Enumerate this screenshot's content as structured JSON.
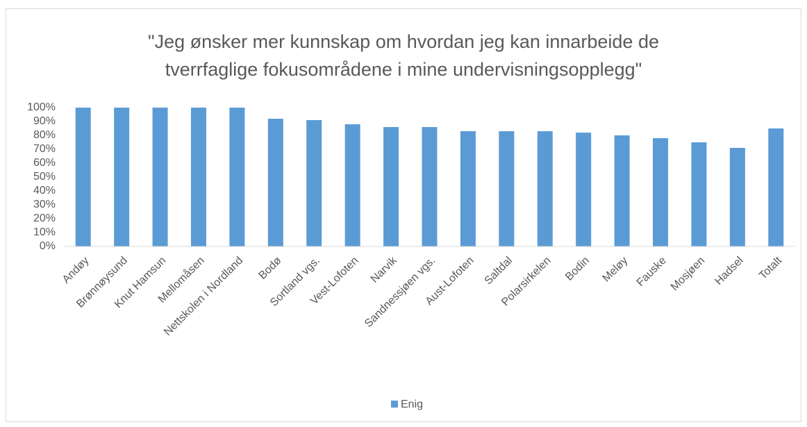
{
  "chart_data": {
    "type": "bar",
    "title": [
      "\"Jeg ønsker mer kunnskap om hvordan jeg kan innarbeide de",
      "tverrfaglige fokusområdene i mine undervisningsopplegg\""
    ],
    "categories": [
      "Andøy",
      "Brønnøysund",
      "Knut Hamsun",
      "Mellomåsen",
      "Nettskolen i Nordland",
      "Bodø",
      "Sortland vgs.",
      "Vest-Lofoten",
      "Narvik",
      "Sandnessjøen vgs.",
      "Aust-Lofoten",
      "Saltdal",
      "Polarsirkelen",
      "Bodin",
      "Meløy",
      "Fauske",
      "Mosjøen",
      "Hadsel",
      "Totalt"
    ],
    "series": [
      {
        "name": "Enig",
        "color": "#5b9bd5",
        "values": [
          100,
          100,
          100,
          100,
          100,
          92,
          91,
          88,
          86,
          86,
          83,
          83,
          83,
          82,
          80,
          78,
          75,
          71,
          85
        ]
      }
    ],
    "ylim": [
      0,
      100
    ],
    "yticks": [
      {
        "value": 0,
        "label": "0%"
      },
      {
        "value": 10,
        "label": "10%"
      },
      {
        "value": 20,
        "label": "20%"
      },
      {
        "value": 30,
        "label": "30%"
      },
      {
        "value": 40,
        "label": "40%"
      },
      {
        "value": 50,
        "label": "50%"
      },
      {
        "value": 60,
        "label": "60%"
      },
      {
        "value": 70,
        "label": "70%"
      },
      {
        "value": 80,
        "label": "80%"
      },
      {
        "value": 90,
        "label": "90%"
      },
      {
        "value": 100,
        "label": "100%"
      }
    ],
    "grid": false,
    "legend": "bottom"
  }
}
